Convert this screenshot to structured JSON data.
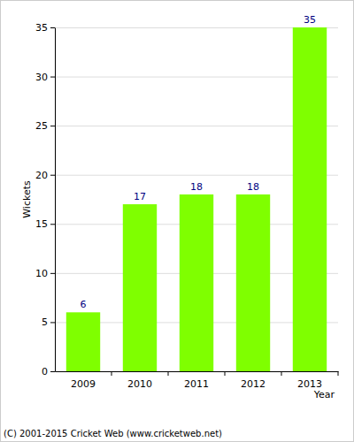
{
  "chart_data": {
    "type": "bar",
    "categories": [
      "2009",
      "2010",
      "2011",
      "2012",
      "2013"
    ],
    "values": [
      6,
      17,
      18,
      18,
      35
    ],
    "color": "#7fff00",
    "x_label": "Year",
    "y_label": "Wickets",
    "ylim": [
      0,
      35
    ],
    "yticks": [
      0,
      5,
      10,
      15,
      20,
      25,
      30,
      35
    ],
    "grid": true,
    "data_labels": true,
    "annotations": [
      "(C) 2001-2015 Cricket Web (www.cricketweb.net)"
    ]
  }
}
